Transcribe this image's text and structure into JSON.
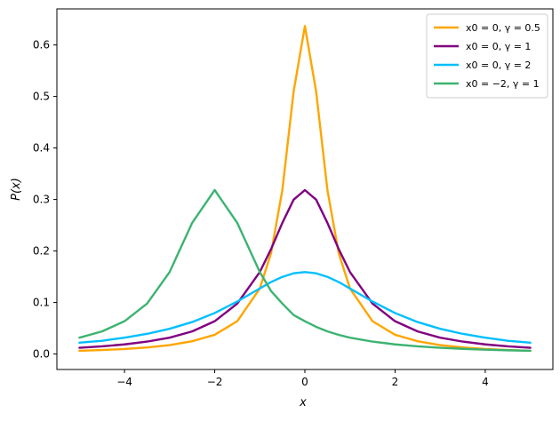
{
  "chart_data": {
    "type": "line",
    "title": "",
    "xlabel": "x",
    "ylabel": "P(x)",
    "xlim": [
      -5.5,
      5.5
    ],
    "ylim": [
      -0.03,
      0.67
    ],
    "x_ticks": [
      -4,
      -2,
      0,
      2,
      4
    ],
    "x_tick_labels": [
      "−4",
      "−2",
      "0",
      "2",
      "4"
    ],
    "y_ticks": [
      0.0,
      0.1,
      0.2,
      0.3,
      0.4,
      0.5,
      0.6
    ],
    "y_tick_labels": [
      "0.0",
      "0.1",
      "0.2",
      "0.3",
      "0.4",
      "0.5",
      "0.6"
    ],
    "grid": false,
    "legend_position": "top-right",
    "x": [
      -5,
      -4.5,
      -4,
      -3.5,
      -3,
      -2.5,
      -2,
      -1.5,
      -1,
      -0.75,
      -0.5,
      -0.25,
      0,
      0.25,
      0.5,
      0.75,
      1,
      1.5,
      2,
      2.5,
      3,
      3.5,
      4,
      4.5,
      5
    ],
    "series": [
      {
        "name": "x0 = 0, γ = 0.5",
        "color": "#FFA500",
        "values": [
          0.0063,
          0.0078,
          0.0098,
          0.0128,
          0.0174,
          0.0249,
          0.0374,
          0.0637,
          0.1273,
          0.1959,
          0.3183,
          0.5093,
          0.6366,
          0.5093,
          0.3183,
          0.1959,
          0.1273,
          0.0637,
          0.0374,
          0.0249,
          0.0174,
          0.0128,
          0.0098,
          0.0078,
          0.0063
        ]
      },
      {
        "name": "x0 = 0, γ = 1",
        "color": "#800080",
        "values": [
          0.0122,
          0.0149,
          0.0187,
          0.0241,
          0.0318,
          0.0439,
          0.0637,
          0.0979,
          0.1592,
          0.2037,
          0.2546,
          0.2996,
          0.3183,
          0.2996,
          0.2546,
          0.2037,
          0.1592,
          0.0979,
          0.0637,
          0.0439,
          0.0318,
          0.0241,
          0.0187,
          0.0149,
          0.0122
        ]
      },
      {
        "name": "x0 = 0, γ = 2",
        "color": "#00BFFF",
        "values": [
          0.022,
          0.0258,
          0.0318,
          0.0392,
          0.049,
          0.0621,
          0.0796,
          0.1019,
          0.1273,
          0.1397,
          0.1498,
          0.1567,
          0.1592,
          0.1567,
          0.1498,
          0.1397,
          0.1273,
          0.1019,
          0.0796,
          0.0621,
          0.049,
          0.0392,
          0.0318,
          0.0258,
          0.022
        ]
      },
      {
        "name": "x0 = −2, γ = 1",
        "color": "#3CB371",
        "values": [
          0.0318,
          0.0439,
          0.0637,
          0.0979,
          0.1592,
          0.2546,
          0.3183,
          0.2546,
          0.1592,
          0.1223,
          0.0979,
          0.0757,
          0.0637,
          0.0528,
          0.0439,
          0.0372,
          0.0318,
          0.0241,
          0.0187,
          0.0149,
          0.0122,
          0.0101,
          0.0085,
          0.0073,
          0.0063
        ]
      }
    ]
  }
}
